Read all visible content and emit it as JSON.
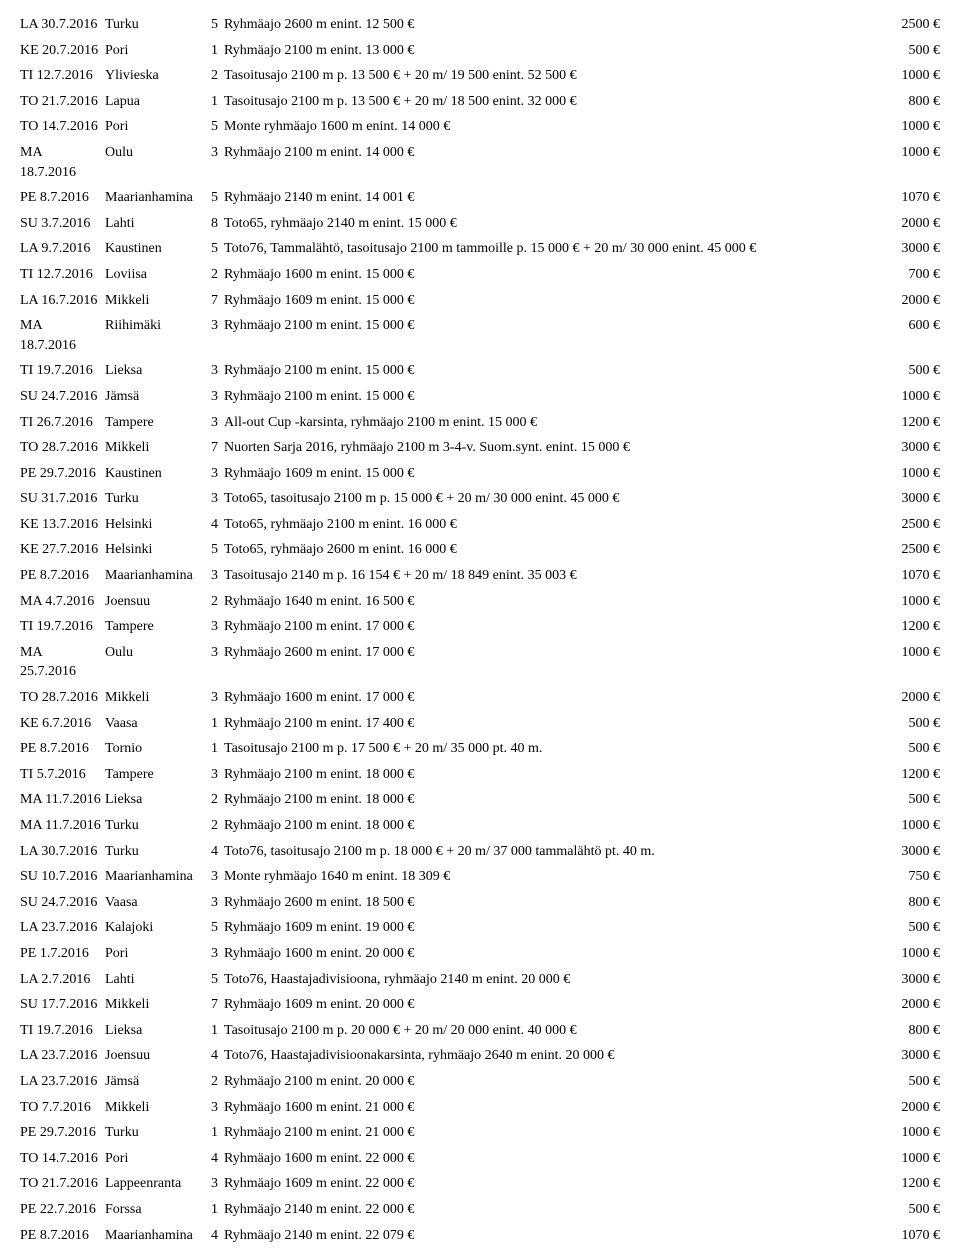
{
  "rows": [
    {
      "date": "LA 30.7.2016",
      "city": "Turku",
      "num": "5",
      "desc": "Ryhmäajo 2600 m enint. 12 500 €",
      "prize": "2500 €"
    },
    {
      "date": "KE 20.7.2016",
      "city": "Pori",
      "num": "1",
      "desc": "Ryhmäajo 2100 m enint. 13 000 €",
      "prize": "500 €"
    },
    {
      "date": "TI 12.7.2016",
      "city": "Ylivieska",
      "num": "2",
      "desc": "Tasoitusajo 2100 m p. 13 500 € + 20 m/ 19 500 enint. 52 500 €",
      "prize": "1000 €"
    },
    {
      "date": "TO 21.7.2016",
      "city": "Lapua",
      "num": "1",
      "desc": "Tasoitusajo 2100 m p. 13 500 € + 20 m/ 18 500 enint. 32 000 €",
      "prize": "800 €"
    },
    {
      "date": "TO 14.7.2016",
      "city": "Pori",
      "num": "5",
      "desc": "Monte ryhmäajo 1600 m enint. 14 000 €",
      "prize": "1000 €"
    },
    {
      "date": "MA 18.7.2016",
      "city": "Oulu",
      "num": "3",
      "desc": "Ryhmäajo 2100 m enint. 14 000 €",
      "prize": "1000 €"
    },
    {
      "date": "PE 8.7.2016",
      "city": "Maarianhamina",
      "num": "5",
      "desc": "Ryhmäajo 2140 m enint. 14 001 €",
      "prize": "1070 €"
    },
    {
      "date": "SU 3.7.2016",
      "city": "Lahti",
      "num": "8",
      "desc": "Toto65, ryhmäajo 2140 m enint. 15 000 €",
      "prize": "2000 €"
    },
    {
      "date": "LA 9.7.2016",
      "city": "Kaustinen",
      "num": "5",
      "desc": "Toto76, Tammalähtö, tasoitusajo 2100 m tammoille p. 15 000 € + 20 m/ 30 000 enint. 45 000 €",
      "prize": "3000 €"
    },
    {
      "date": "TI 12.7.2016",
      "city": "Loviisa",
      "num": "2",
      "desc": "Ryhmäajo 1600 m enint. 15 000 €",
      "prize": "700 €"
    },
    {
      "date": "LA 16.7.2016",
      "city": "Mikkeli",
      "num": "7",
      "desc": "Ryhmäajo 1609 m enint. 15 000 €",
      "prize": "2000 €"
    },
    {
      "date": "MA 18.7.2016",
      "city": "Riihimäki",
      "num": "3",
      "desc": "Ryhmäajo 2100 m enint. 15 000 €",
      "prize": "600 €"
    },
    {
      "date": "TI 19.7.2016",
      "city": "Lieksa",
      "num": "3",
      "desc": "Ryhmäajo 2100 m enint. 15 000 €",
      "prize": "500 €"
    },
    {
      "date": "SU 24.7.2016",
      "city": "Jämsä",
      "num": "3",
      "desc": "Ryhmäajo 2100 m enint. 15 000 €",
      "prize": "1000 €"
    },
    {
      "date": "TI 26.7.2016",
      "city": "Tampere",
      "num": "3",
      "desc": "All-out Cup -karsinta, ryhmäajo 2100 m enint. 15 000 €",
      "prize": "1200 €"
    },
    {
      "date": "TO 28.7.2016",
      "city": "Mikkeli",
      "num": "7",
      "desc": "Nuorten Sarja 2016, ryhmäajo 2100 m 3-4-v. Suom.synt. enint. 15 000 €",
      "prize": "3000 €"
    },
    {
      "date": "PE 29.7.2016",
      "city": "Kaustinen",
      "num": "3",
      "desc": "Ryhmäajo 1609 m enint. 15 000 €",
      "prize": "1000 €"
    },
    {
      "date": "SU 31.7.2016",
      "city": "Turku",
      "num": "3",
      "desc": "Toto65, tasoitusajo 2100 m p. 15 000 € + 20 m/ 30 000 enint. 45 000 €",
      "prize": "3000 €"
    },
    {
      "date": "KE 13.7.2016",
      "city": "Helsinki",
      "num": "4",
      "desc": "Toto65, ryhmäajo 2100 m enint. 16 000 €",
      "prize": "2500 €"
    },
    {
      "date": "KE 27.7.2016",
      "city": "Helsinki",
      "num": "5",
      "desc": "Toto65, ryhmäajo 2600 m enint. 16 000 €",
      "prize": "2500 €"
    },
    {
      "date": "PE 8.7.2016",
      "city": "Maarianhamina",
      "num": "3",
      "desc": "Tasoitusajo 2140 m p. 16 154 € + 20 m/ 18 849 enint. 35 003 €",
      "prize": "1070 €"
    },
    {
      "date": "MA 4.7.2016",
      "city": "Joensuu",
      "num": "2",
      "desc": "Ryhmäajo 1640 m enint. 16 500 €",
      "prize": "1000 €"
    },
    {
      "date": "TI 19.7.2016",
      "city": "Tampere",
      "num": "3",
      "desc": "Ryhmäajo 2100 m enint. 17 000 €",
      "prize": "1200 €"
    },
    {
      "date": "MA 25.7.2016",
      "city": "Oulu",
      "num": "3",
      "desc": "Ryhmäajo 2600 m enint. 17 000 €",
      "prize": "1000 €"
    },
    {
      "date": "TO 28.7.2016",
      "city": "Mikkeli",
      "num": "3",
      "desc": "Ryhmäajo 1600 m enint. 17 000 €",
      "prize": "2000 €"
    },
    {
      "date": "KE 6.7.2016",
      "city": "Vaasa",
      "num": "1",
      "desc": "Ryhmäajo 2100 m enint. 17 400 €",
      "prize": "500 €"
    },
    {
      "date": "PE 8.7.2016",
      "city": "Tornio",
      "num": "1",
      "desc": "Tasoitusajo 2100 m p. 17 500 € + 20 m/ 35 000 pt. 40 m.",
      "prize": "500 €"
    },
    {
      "date": "TI 5.7.2016",
      "city": "Tampere",
      "num": "3",
      "desc": "Ryhmäajo 2100 m enint. 18 000 €",
      "prize": "1200 €"
    },
    {
      "date": "MA 11.7.2016",
      "city": "Lieksa",
      "num": "2",
      "desc": "Ryhmäajo 2100 m enint. 18 000 €",
      "prize": "500 €"
    },
    {
      "date": "MA 11.7.2016",
      "city": "Turku",
      "num": "2",
      "desc": "Ryhmäajo 2100 m enint. 18 000 €",
      "prize": "1000 €"
    },
    {
      "date": "LA 30.7.2016",
      "city": "Turku",
      "num": "4",
      "desc": "Toto76, tasoitusajo 2100 m p. 18 000 € + 20 m/ 37 000 tammalähtö pt. 40 m.",
      "prize": "3000 €"
    },
    {
      "date": "SU 10.7.2016",
      "city": "Maarianhamina",
      "num": "3",
      "desc": "Monte ryhmäajo 1640 m enint. 18 309 €",
      "prize": "750 €"
    },
    {
      "date": "SU 24.7.2016",
      "city": "Vaasa",
      "num": "3",
      "desc": "Ryhmäajo 2600 m enint. 18 500 €",
      "prize": "800 €"
    },
    {
      "date": "LA 23.7.2016",
      "city": "Kalajoki",
      "num": "5",
      "desc": "Ryhmäajo 1609 m enint. 19 000 €",
      "prize": "500 €"
    },
    {
      "date": "PE 1.7.2016",
      "city": "Pori",
      "num": "3",
      "desc": "Ryhmäajo 1600 m enint. 20 000 €",
      "prize": "1000 €"
    },
    {
      "date": "LA 2.7.2016",
      "city": "Lahti",
      "num": "5",
      "desc": "Toto76, Haastajadivisioona, ryhmäajo 2140 m enint. 20 000 €",
      "prize": "3000 €"
    },
    {
      "date": "SU 17.7.2016",
      "city": "Mikkeli",
      "num": "7",
      "desc": "Ryhmäajo 1609 m enint. 20 000 €",
      "prize": "2000 €"
    },
    {
      "date": "TI 19.7.2016",
      "city": "Lieksa",
      "num": "1",
      "desc": "Tasoitusajo 2100 m p. 20 000 € + 20 m/ 20 000 enint. 40 000 €",
      "prize": "800 €"
    },
    {
      "date": "LA 23.7.2016",
      "city": "Joensuu",
      "num": "4",
      "desc": "Toto76, Haastajadivisioonakarsinta, ryhmäajo 2640 m enint. 20 000 €",
      "prize": "3000 €"
    },
    {
      "date": "LA 23.7.2016",
      "city": "Jämsä",
      "num": "2",
      "desc": "Ryhmäajo 2100 m enint. 20 000 €",
      "prize": "500 €"
    },
    {
      "date": "TO 7.7.2016",
      "city": "Mikkeli",
      "num": "3",
      "desc": "Ryhmäajo 1600 m enint. 21 000 €",
      "prize": "2000 €"
    },
    {
      "date": "PE 29.7.2016",
      "city": "Turku",
      "num": "1",
      "desc": "Ryhmäajo 2100 m enint. 21 000 €",
      "prize": "1000 €"
    },
    {
      "date": "TO 14.7.2016",
      "city": "Pori",
      "num": "4",
      "desc": "Ryhmäajo 1600 m enint. 22 000 €",
      "prize": "1000 €"
    },
    {
      "date": "TO 21.7.2016",
      "city": "Lappeenranta",
      "num": "3",
      "desc": "Ryhmäajo 1609 m enint. 22 000 €",
      "prize": "1200 €"
    },
    {
      "date": "PE 22.7.2016",
      "city": "Forssa",
      "num": "1",
      "desc": "Ryhmäajo 2140 m enint. 22 000 €",
      "prize": "500 €"
    },
    {
      "date": "PE 8.7.2016",
      "city": "Maarianhamina",
      "num": "4",
      "desc": "Ryhmäajo 2140 m enint. 22 079 €",
      "prize": "1070 €"
    }
  ]
}
